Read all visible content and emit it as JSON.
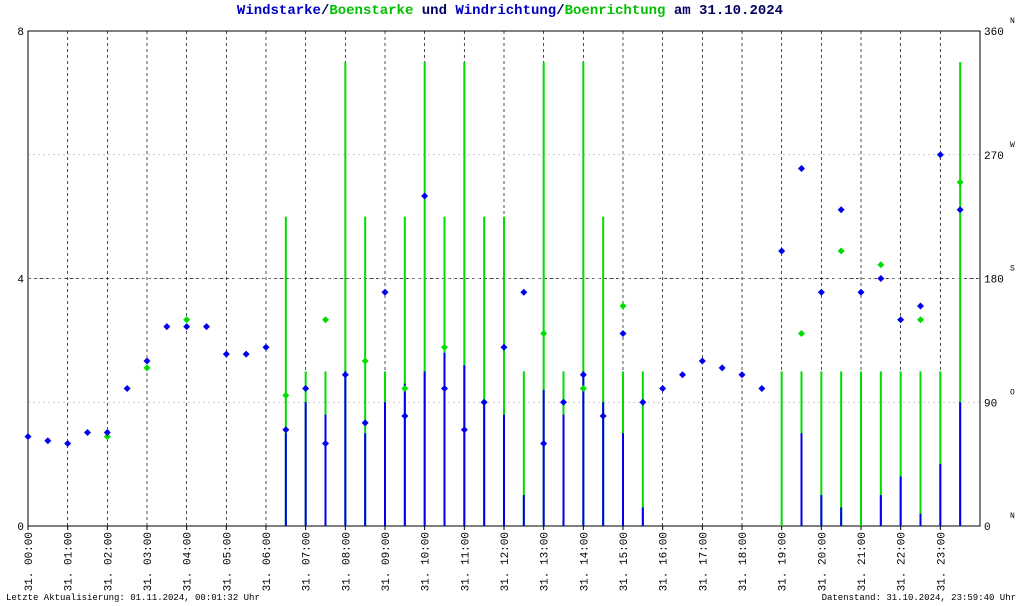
{
  "chart_data": {
    "type": "combo",
    "title_parts": [
      {
        "text": "Windstarke",
        "color": "#0000c0"
      },
      {
        "text": "/",
        "color": "#000060"
      },
      {
        "text": "Boenstarke",
        "color": "#00c000"
      },
      {
        "text": " und ",
        "color": "#000060"
      },
      {
        "text": "Windrichtung",
        "color": "#0000c0"
      },
      {
        "text": "/",
        "color": "#000060"
      },
      {
        "text": "Boenrichtung",
        "color": "#00c000"
      },
      {
        "text": " am 31.10.2024",
        "color": "#000060"
      }
    ],
    "footer_left": "Letzte Aktualisierung: 01.11.2024, 00:01:32 Uhr",
    "footer_right": "Datenstand: 31.10.2024, 23:59:40 Uhr",
    "xlim": [
      0,
      24
    ],
    "xticks": [
      {
        "value": 0,
        "label": "31. 00:00"
      },
      {
        "value": 1,
        "label": "31. 01:00"
      },
      {
        "value": 2,
        "label": "31. 02:00"
      },
      {
        "value": 3,
        "label": "31. 03:00"
      },
      {
        "value": 4,
        "label": "31. 04:00"
      },
      {
        "value": 5,
        "label": "31. 05:00"
      },
      {
        "value": 6,
        "label": "31. 06:00"
      },
      {
        "value": 7,
        "label": "31. 07:00"
      },
      {
        "value": 8,
        "label": "31. 08:00"
      },
      {
        "value": 9,
        "label": "31. 09:00"
      },
      {
        "value": 10,
        "label": "31. 10:00"
      },
      {
        "value": 11,
        "label": "31. 11:00"
      },
      {
        "value": 12,
        "label": "31. 12:00"
      },
      {
        "value": 13,
        "label": "31. 13:00"
      },
      {
        "value": 14,
        "label": "31. 14:00"
      },
      {
        "value": 15,
        "label": "31. 15:00"
      },
      {
        "value": 16,
        "label": "31. 16:00"
      },
      {
        "value": 17,
        "label": "31. 17:00"
      },
      {
        "value": 18,
        "label": "31. 18:00"
      },
      {
        "value": 19,
        "label": "31. 19:00"
      },
      {
        "value": 20,
        "label": "31. 20:00"
      },
      {
        "value": 21,
        "label": "31. 21:00"
      },
      {
        "value": 22,
        "label": "31. 22:00"
      },
      {
        "value": 23,
        "label": "31. 23:00"
      }
    ],
    "ylim": [
      0,
      8
    ],
    "yticks": [
      0,
      4,
      8
    ],
    "y2lim": [
      0,
      360
    ],
    "y2ticks": [
      0,
      90,
      180,
      270,
      360
    ],
    "y2tick_directions": [
      "N",
      "O",
      "S",
      "W",
      "N"
    ],
    "grid": true,
    "x": [
      0,
      0.5,
      1,
      1.5,
      2,
      2.5,
      3,
      3.5,
      4,
      4.5,
      5,
      5.5,
      6,
      6.5,
      7,
      7.5,
      8,
      8.5,
      9,
      9.5,
      10,
      10.5,
      11,
      11.5,
      12,
      12.5,
      13,
      13.5,
      14,
      14.5,
      15,
      15.5,
      16,
      16.5,
      17,
      17.5,
      18,
      18.5,
      19,
      19.5,
      20,
      20.5,
      21,
      21.5,
      22,
      22.5,
      23,
      23.5
    ],
    "series": [
      {
        "name": "Boenstarke",
        "type": "impulse",
        "color": "#00dd00",
        "values": [
          0,
          0,
          0,
          0,
          0,
          0,
          0,
          0,
          0,
          0,
          0,
          0,
          0,
          5.0,
          2.5,
          2.5,
          7.5,
          5.0,
          2.5,
          5.0,
          7.5,
          5.0,
          7.5,
          5.0,
          5.0,
          2.5,
          7.5,
          2.5,
          7.5,
          5.0,
          2.5,
          2.5,
          0,
          0,
          0,
          0,
          0,
          0,
          2.5,
          2.5,
          2.5,
          2.5,
          2.5,
          2.5,
          2.5,
          2.5,
          2.5,
          7.5
        ]
      },
      {
        "name": "Windstarke",
        "type": "impulse",
        "color": "#0000ee",
        "values": [
          0,
          0,
          0,
          0,
          0,
          0,
          0,
          0,
          0,
          0,
          0,
          0,
          0,
          1.5,
          2.0,
          1.8,
          2.5,
          1.5,
          2.0,
          2.3,
          2.5,
          2.8,
          2.6,
          2.0,
          1.8,
          0.5,
          2.2,
          1.8,
          2.5,
          2.0,
          1.5,
          0.3,
          0,
          0,
          0,
          0,
          0,
          0,
          0,
          1.5,
          0.5,
          0.3,
          0,
          0.5,
          0.8,
          0.2,
          1.0,
          2.0
        ]
      },
      {
        "name": "Boenrichtung",
        "type": "scatter",
        "axis": "y2",
        "color": "#00dd00",
        "values": [
          null,
          null,
          null,
          null,
          65,
          null,
          115,
          null,
          150,
          null,
          null,
          null,
          null,
          95,
          null,
          150,
          null,
          120,
          null,
          100,
          null,
          130,
          null,
          90,
          null,
          null,
          140,
          null,
          100,
          null,
          160,
          null,
          null,
          null,
          null,
          null,
          null,
          null,
          null,
          140,
          null,
          200,
          null,
          190,
          null,
          150,
          null,
          250
        ]
      },
      {
        "name": "Windrichtung",
        "type": "scatter",
        "axis": "y2",
        "color": "#0000ee",
        "values": [
          65,
          62,
          60,
          68,
          68,
          100,
          120,
          145,
          145,
          145,
          125,
          125,
          130,
          70,
          100,
          60,
          110,
          75,
          170,
          80,
          240,
          100,
          70,
          90,
          130,
          170,
          60,
          90,
          110,
          80,
          140,
          90,
          100,
          110,
          120,
          115,
          110,
          100,
          200,
          260,
          170,
          230,
          170,
          180,
          150,
          160,
          270,
          230
        ]
      }
    ]
  }
}
